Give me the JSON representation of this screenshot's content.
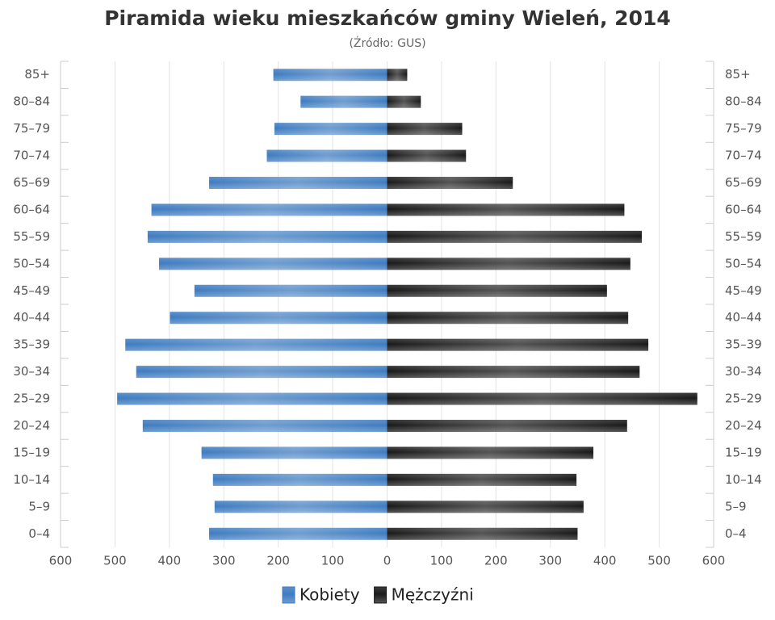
{
  "chart_data": {
    "type": "pyramid",
    "title": "Piramida wieku mieszkańców gminy Wieleń, 2014",
    "subtitle": "(Źródło: GUS)",
    "categories": [
      "0–4",
      "5–9",
      "10–14",
      "15–19",
      "20–24",
      "25–29",
      "30–34",
      "35–39",
      "40–44",
      "45–49",
      "50–54",
      "55–59",
      "60–64",
      "65–69",
      "70–74",
      "75–79",
      "80–84",
      "85+"
    ],
    "series": [
      {
        "name": "Kobiety",
        "color": "#3f7cc0",
        "values": [
          -327,
          -317,
          -320,
          -341,
          -449,
          -496,
          -461,
          -481,
          -399,
          -354,
          -419,
          -440,
          -433,
          -327,
          -221,
          -207,
          -159,
          -209
        ]
      },
      {
        "name": "Mężczyźni",
        "color": "#1a1a1a",
        "values": [
          350,
          361,
          348,
          379,
          441,
          570,
          464,
          480,
          443,
          404,
          447,
          468,
          436,
          231,
          145,
          138,
          62,
          37
        ]
      }
    ],
    "xlim": [
      -600,
      600
    ],
    "xticks": [
      {
        "value": -600,
        "label": "600"
      },
      {
        "value": -500,
        "label": "500"
      },
      {
        "value": -400,
        "label": "400"
      },
      {
        "value": -300,
        "label": "300"
      },
      {
        "value": -200,
        "label": "200"
      },
      {
        "value": -100,
        "label": "100"
      },
      0,
      100,
      200,
      300,
      400,
      500,
      600
    ],
    "grid": true,
    "legend": "bottom"
  }
}
